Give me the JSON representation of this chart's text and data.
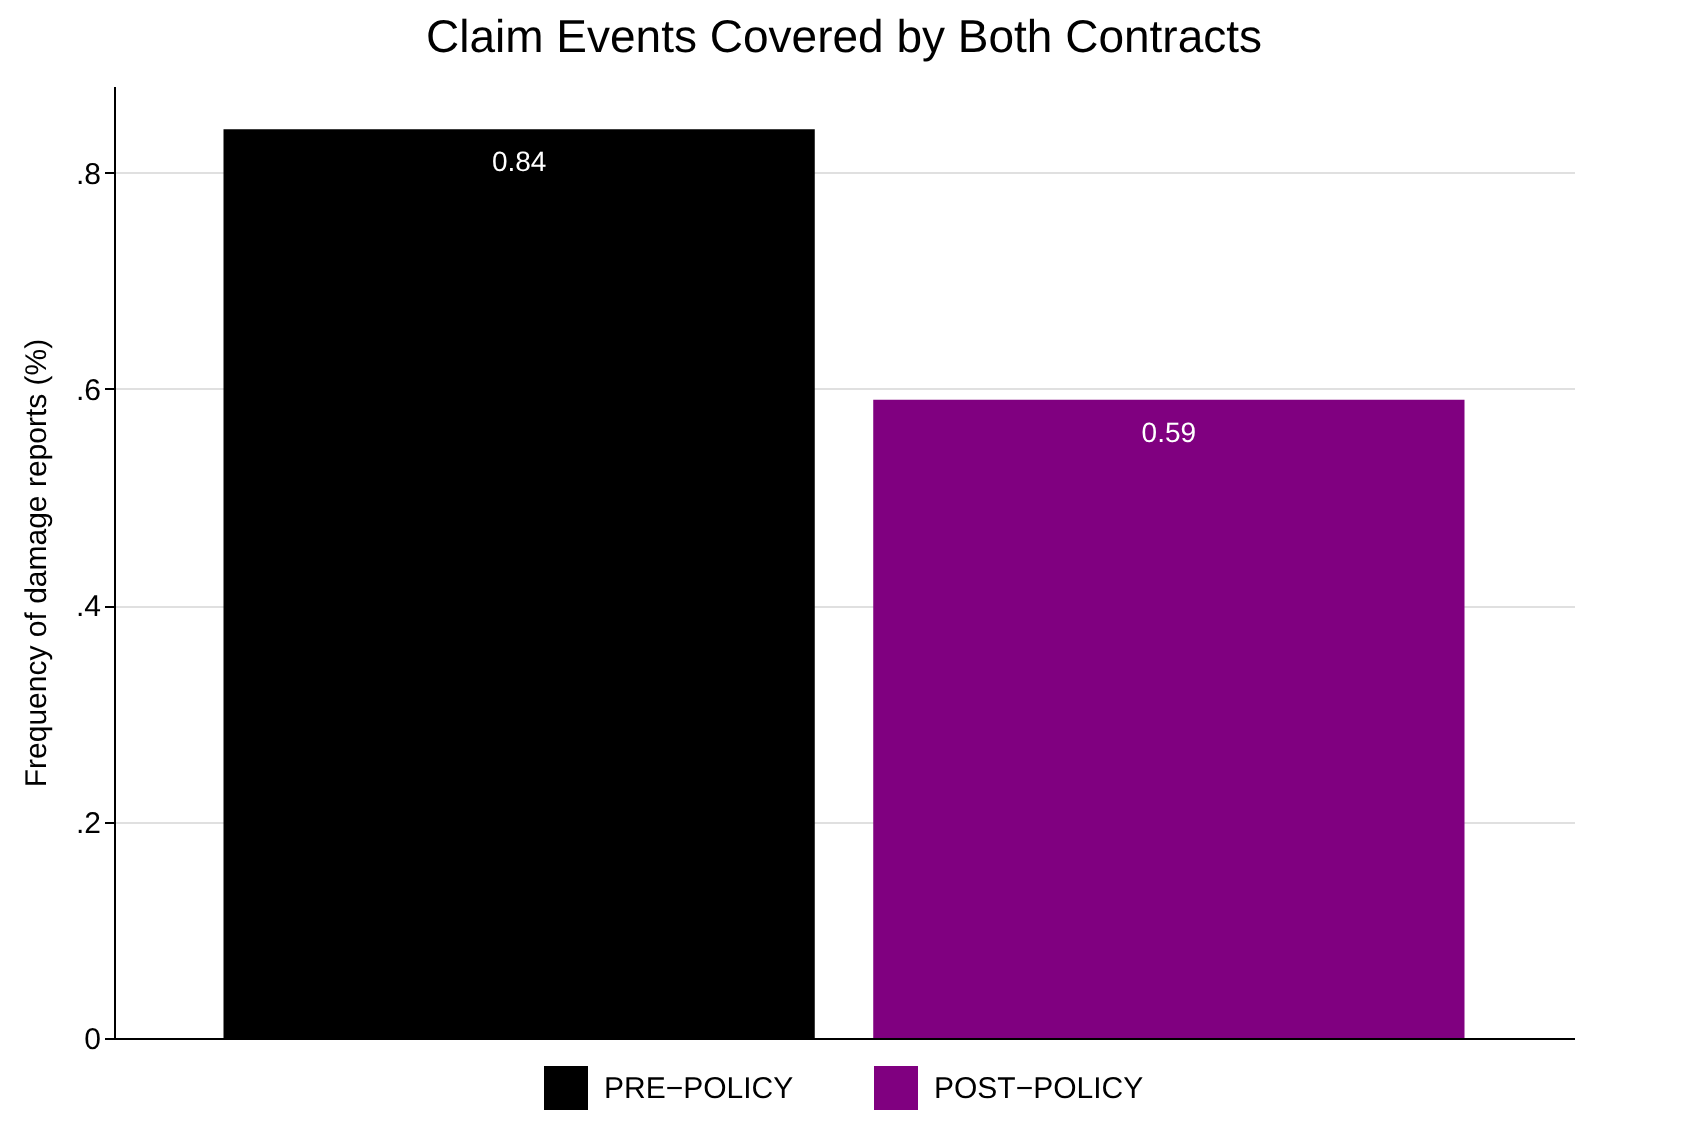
{
  "chart_data": {
    "type": "bar",
    "title": "Claim Events Covered by Both Contracts",
    "ylabel": "Frequency of damage reports (%)",
    "categories": [
      null
    ],
    "series": [
      {
        "name": "PRE−POLICY",
        "color": "#000000",
        "values": [
          0.84
        ]
      },
      {
        "name": "POST−POLICY",
        "color": "#800080",
        "values": [
          0.59
        ]
      }
    ],
    "ylim": [
      0,
      0.88
    ],
    "yticks": [
      0,
      {
        "value": 0.2,
        "label": ".2"
      },
      {
        "value": 0.4,
        "label": ".4"
      },
      {
        "value": 0.6,
        "label": ".6"
      },
      {
        "value": 0.8,
        "label": ".8"
      }
    ],
    "grid": "y",
    "legend": "bottom",
    "data_labels": true,
    "tick_labels": "y"
  }
}
